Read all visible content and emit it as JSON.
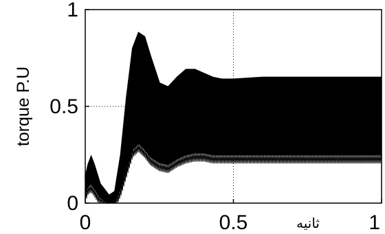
{
  "chart_data": {
    "type": "line",
    "ylabel": "torque    P.U",
    "xlabel": "ثانیه",
    "xlim": [
      0,
      1
    ],
    "ylim": [
      0,
      1
    ],
    "x_ticks": [
      "0",
      "0.5",
      "1"
    ],
    "y_ticks": [
      "0",
      "0.5",
      "1"
    ],
    "grid": "dotted",
    "series": [
      {
        "role": "upper envelope",
        "x": [
          0.0,
          0.01,
          0.02,
          0.03,
          0.05,
          0.08,
          0.1,
          0.12,
          0.14,
          0.16,
          0.18,
          0.2,
          0.22,
          0.25,
          0.28,
          0.31,
          0.34,
          0.37,
          0.4,
          0.43,
          0.46,
          0.5,
          0.6,
          0.7,
          0.8,
          0.9,
          1.0
        ],
        "y": [
          0.13,
          0.2,
          0.24,
          0.2,
          0.1,
          0.04,
          0.06,
          0.25,
          0.55,
          0.8,
          0.88,
          0.86,
          0.76,
          0.62,
          0.6,
          0.65,
          0.69,
          0.69,
          0.67,
          0.65,
          0.64,
          0.64,
          0.65,
          0.65,
          0.65,
          0.65,
          0.65
        ]
      },
      {
        "role": "lower envelope",
        "x": [
          0.0,
          0.01,
          0.02,
          0.03,
          0.05,
          0.08,
          0.1,
          0.12,
          0.14,
          0.16,
          0.18,
          0.2,
          0.22,
          0.25,
          0.28,
          0.31,
          0.34,
          0.37,
          0.4,
          0.43,
          0.46,
          0.5,
          0.6,
          0.7,
          0.8,
          0.9,
          1.0
        ],
        "y": [
          0.05,
          0.09,
          0.1,
          0.08,
          0.03,
          0.0,
          0.01,
          0.08,
          0.18,
          0.28,
          0.31,
          0.28,
          0.24,
          0.21,
          0.2,
          0.23,
          0.25,
          0.26,
          0.26,
          0.25,
          0.25,
          0.25,
          0.25,
          0.25,
          0.25,
          0.25,
          0.25
        ]
      }
    ]
  }
}
